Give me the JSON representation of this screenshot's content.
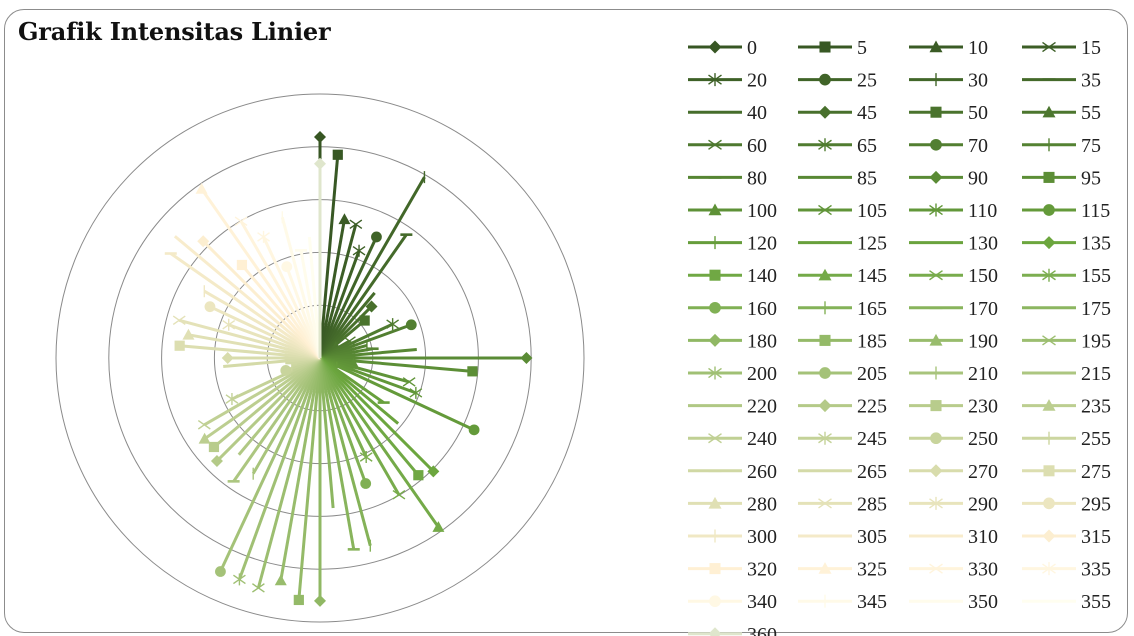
{
  "chart_data": {
    "type": "radar",
    "title": "Grafik Intensitas Linier",
    "radial_axis": {
      "rings": 5,
      "range": [
        0,
        1
      ],
      "grid": true,
      "labels": []
    },
    "legend": {
      "placement": "right",
      "columns": 4
    },
    "series": [
      {
        "name": "0",
        "value": 0.91,
        "color": "#375623",
        "marker": "diamond"
      },
      {
        "name": "5",
        "value": 0.84,
        "color": "#385824",
        "marker": "square"
      },
      {
        "name": "10",
        "value": 0.58,
        "color": "#3a5b25",
        "marker": "triangle"
      },
      {
        "name": "15",
        "value": 0.57,
        "color": "#3c5e26",
        "marker": "x"
      },
      {
        "name": "20",
        "value": 0.47,
        "color": "#3e6127",
        "marker": "star"
      },
      {
        "name": "25",
        "value": 0.55,
        "color": "#406428",
        "marker": "circle"
      },
      {
        "name": "30",
        "value": 0.86,
        "color": "#426729",
        "marker": "plus"
      },
      {
        "name": "35",
        "value": 0.62,
        "color": "#446a2a",
        "marker": "dash"
      },
      {
        "name": "40",
        "value": 0.35,
        "color": "#466d2b",
        "marker": "none"
      },
      {
        "name": "45",
        "value": 0.3,
        "color": "#48702c",
        "marker": "diamond"
      },
      {
        "name": "50",
        "value": 0.24,
        "color": "#4a732d",
        "marker": "square"
      },
      {
        "name": "55",
        "value": 0.08,
        "color": "#4c762e",
        "marker": "triangle"
      },
      {
        "name": "60",
        "value": 0.14,
        "color": "#4e792f",
        "marker": "x"
      },
      {
        "name": "65",
        "value": 0.33,
        "color": "#507c30",
        "marker": "star"
      },
      {
        "name": "70",
        "value": 0.4,
        "color": "#527f31",
        "marker": "circle"
      },
      {
        "name": "75",
        "value": 0.2,
        "color": "#548232",
        "marker": "plus"
      },
      {
        "name": "80",
        "value": 0.22,
        "color": "#568533",
        "marker": "dash"
      },
      {
        "name": "85",
        "value": 0.4,
        "color": "#588834",
        "marker": "none"
      },
      {
        "name": "90",
        "value": 0.85,
        "color": "#5a8b35",
        "marker": "diamond"
      },
      {
        "name": "95",
        "value": 0.63,
        "color": "#5c8e36",
        "marker": "square"
      },
      {
        "name": "100",
        "value": 0.14,
        "color": "#5e9137",
        "marker": "triangle"
      },
      {
        "name": "105",
        "value": 0.38,
        "color": "#609438",
        "marker": "x"
      },
      {
        "name": "110",
        "value": 0.42,
        "color": "#629739",
        "marker": "star"
      },
      {
        "name": "115",
        "value": 0.7,
        "color": "#649a3a",
        "marker": "circle"
      },
      {
        "name": "120",
        "value": 0.08,
        "color": "#669d3b",
        "marker": "plus"
      },
      {
        "name": "125",
        "value": 0.32,
        "color": "#68a03c",
        "marker": "dash"
      },
      {
        "name": "130",
        "value": 0.42,
        "color": "#6aa33d",
        "marker": "none"
      },
      {
        "name": "135",
        "value": 0.66,
        "color": "#6ca63e",
        "marker": "diamond"
      },
      {
        "name": "140",
        "value": 0.63,
        "color": "#70a844",
        "marker": "square"
      },
      {
        "name": "145",
        "value": 0.85,
        "color": "#74aa48",
        "marker": "triangle"
      },
      {
        "name": "150",
        "value": 0.65,
        "color": "#78ac4c",
        "marker": "x"
      },
      {
        "name": "155",
        "value": 0.45,
        "color": "#7cae50",
        "marker": "star"
      },
      {
        "name": "160",
        "value": 0.55,
        "color": "#80b054",
        "marker": "circle"
      },
      {
        "name": "165",
        "value": 0.8,
        "color": "#84b258",
        "marker": "plus"
      },
      {
        "name": "170",
        "value": 0.8,
        "color": "#88b45c",
        "marker": "dash"
      },
      {
        "name": "175",
        "value": 0.62,
        "color": "#8cb660",
        "marker": "none"
      },
      {
        "name": "180",
        "value": 1.0,
        "color": "#90b864",
        "marker": "diamond"
      },
      {
        "name": "185",
        "value": 1.0,
        "color": "#94ba68",
        "marker": "square"
      },
      {
        "name": "190",
        "value": 0.93,
        "color": "#98bc6c",
        "marker": "triangle"
      },
      {
        "name": "195",
        "value": 0.98,
        "color": "#9cbe70",
        "marker": "x"
      },
      {
        "name": "200",
        "value": 0.97,
        "color": "#a0c074",
        "marker": "star"
      },
      {
        "name": "205",
        "value": 0.97,
        "color": "#a4c278",
        "marker": "circle"
      },
      {
        "name": "210",
        "value": 0.55,
        "color": "#a8c47c",
        "marker": "plus"
      },
      {
        "name": "215",
        "value": 0.62,
        "color": "#acc680",
        "marker": "dash"
      },
      {
        "name": "220",
        "value": 0.52,
        "color": "#b0c884",
        "marker": "none"
      },
      {
        "name": "225",
        "value": 0.6,
        "color": "#b4ca88",
        "marker": "diamond"
      },
      {
        "name": "230",
        "value": 0.57,
        "color": "#b8cc8c",
        "marker": "square"
      },
      {
        "name": "235",
        "value": 0.58,
        "color": "#bcce90",
        "marker": "triangle"
      },
      {
        "name": "240",
        "value": 0.55,
        "color": "#c0d094",
        "marker": "x"
      },
      {
        "name": "245",
        "value": 0.4,
        "color": "#c4d298",
        "marker": "star"
      },
      {
        "name": "250",
        "value": 0.15,
        "color": "#c8d49c",
        "marker": "circle"
      },
      {
        "name": "255",
        "value": 0.12,
        "color": "#ccd6a0",
        "marker": "plus"
      },
      {
        "name": "260",
        "value": 0.12,
        "color": "#d0d8a4",
        "marker": "dash"
      },
      {
        "name": "265",
        "value": 0.4,
        "color": "#d4daa8",
        "marker": "none"
      },
      {
        "name": "270",
        "value": 0.38,
        "color": "#d8dcac",
        "marker": "diamond"
      },
      {
        "name": "275",
        "value": 0.58,
        "color": "#dcdeb0",
        "marker": "square"
      },
      {
        "name": "280",
        "value": 0.55,
        "color": "#e0e0b4",
        "marker": "triangle"
      },
      {
        "name": "285",
        "value": 0.6,
        "color": "#e4e2b8",
        "marker": "x"
      },
      {
        "name": "290",
        "value": 0.4,
        "color": "#e8e4bc",
        "marker": "star"
      },
      {
        "name": "295",
        "value": 0.5,
        "color": "#ece6c0",
        "marker": "circle"
      },
      {
        "name": "300",
        "value": 0.55,
        "color": "#f0e8c4",
        "marker": "plus"
      },
      {
        "name": "305",
        "value": 0.75,
        "color": "#f4eac8",
        "marker": "dash"
      },
      {
        "name": "310",
        "value": 0.78,
        "color": "#f8eccc",
        "marker": "none"
      },
      {
        "name": "315",
        "value": 0.68,
        "color": "#fceed0",
        "marker": "diamond"
      },
      {
        "name": "320",
        "value": 0.5,
        "color": "#fff0d4",
        "marker": "square"
      },
      {
        "name": "325",
        "value": 0.85,
        "color": "#fff2d8",
        "marker": "triangle"
      },
      {
        "name": "330",
        "value": 0.65,
        "color": "#fff4dc",
        "marker": "x"
      },
      {
        "name": "335",
        "value": 0.55,
        "color": "#fff6e0",
        "marker": "star"
      },
      {
        "name": "340",
        "value": 0.4,
        "color": "#fff8e4",
        "marker": "circle"
      },
      {
        "name": "345",
        "value": 0.6,
        "color": "#fffae8",
        "marker": "plus"
      },
      {
        "name": "350",
        "value": 0.45,
        "color": "#fffcec",
        "marker": "dash"
      },
      {
        "name": "355",
        "value": 0.5,
        "color": "#fffef0",
        "marker": "none"
      },
      {
        "name": "360",
        "value": 0.8,
        "color": "#dfe6cc",
        "marker": "diamond"
      }
    ]
  }
}
